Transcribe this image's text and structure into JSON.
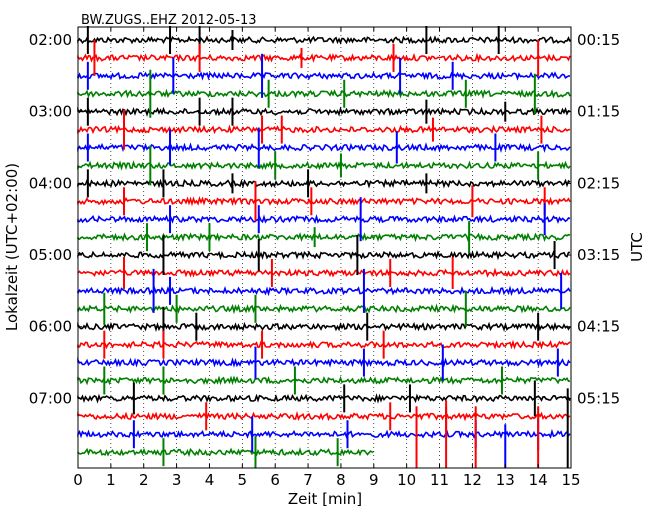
{
  "chart_data": {
    "type": "line",
    "title": "BW.ZUGS..EHZ 2012-05-13",
    "xlabel": "Zeit  [min]",
    "ylabel_left": "Lokalzeit (UTC+02:00)",
    "ylabel_right": "UTC",
    "xlim": [
      0,
      15
    ],
    "x_ticks": [
      "0",
      "1",
      "2",
      "3",
      "4",
      "5",
      "6",
      "7",
      "8",
      "9",
      "10",
      "11",
      "12",
      "13",
      "14",
      "15"
    ],
    "y_ticks_left": [
      "02:00",
      "03:00",
      "04:00",
      "05:00",
      "06:00",
      "07:00"
    ],
    "y_ticks_right": [
      "00:15",
      "01:15",
      "02:15",
      "03:15",
      "04:15",
      "05:15"
    ],
    "grid": "vertical dotted",
    "trace_colors": [
      "#000000",
      "#ff0000",
      "#0000ff",
      "#008000"
    ],
    "trace_count": 24,
    "last_trace_end_min": 9.0,
    "spikes": [
      {
        "row": 0,
        "x": 0.3,
        "amp": 14
      },
      {
        "row": 0,
        "x": 2.8,
        "amp": 14
      },
      {
        "row": 0,
        "x": 3.7,
        "amp": 14
      },
      {
        "row": 0,
        "x": 4.7,
        "amp": 10
      },
      {
        "row": 0,
        "x": 10.6,
        "amp": 14
      },
      {
        "row": 0,
        "x": 12.8,
        "amp": 14
      },
      {
        "row": 1,
        "x": 0.5,
        "amp": 18
      },
      {
        "row": 1,
        "x": 3.7,
        "amp": 14
      },
      {
        "row": 1,
        "x": 6.8,
        "amp": 10
      },
      {
        "row": 1,
        "x": 9.6,
        "amp": 14
      },
      {
        "row": 1,
        "x": 14.0,
        "amp": 18
      },
      {
        "row": 2,
        "x": 0.3,
        "amp": 14
      },
      {
        "row": 2,
        "x": 2.9,
        "amp": 18
      },
      {
        "row": 2,
        "x": 5.6,
        "amp": 22
      },
      {
        "row": 2,
        "x": 9.8,
        "amp": 18
      },
      {
        "row": 2,
        "x": 11.4,
        "amp": 14
      },
      {
        "row": 3,
        "x": 2.2,
        "amp": 24
      },
      {
        "row": 3,
        "x": 5.8,
        "amp": 14
      },
      {
        "row": 3,
        "x": 8.1,
        "amp": 14
      },
      {
        "row": 3,
        "x": 11.8,
        "amp": 14
      },
      {
        "row": 3,
        "x": 13.9,
        "amp": 20
      },
      {
        "row": 4,
        "x": 0.3,
        "amp": 14
      },
      {
        "row": 4,
        "x": 3.7,
        "amp": 14
      },
      {
        "row": 4,
        "x": 4.7,
        "amp": 14
      },
      {
        "row": 4,
        "x": 10.6,
        "amp": 12
      },
      {
        "row": 4,
        "x": 13.0,
        "amp": 10
      },
      {
        "row": 5,
        "x": 1.4,
        "amp": 20
      },
      {
        "row": 5,
        "x": 5.6,
        "amp": 14
      },
      {
        "row": 5,
        "x": 6.2,
        "amp": 14
      },
      {
        "row": 5,
        "x": 10.8,
        "amp": 12
      },
      {
        "row": 5,
        "x": 14.1,
        "amp": 14
      },
      {
        "row": 6,
        "x": 0.3,
        "amp": 14
      },
      {
        "row": 6,
        "x": 2.8,
        "amp": 18
      },
      {
        "row": 6,
        "x": 5.5,
        "amp": 20
      },
      {
        "row": 6,
        "x": 9.7,
        "amp": 16
      },
      {
        "row": 6,
        "x": 12.7,
        "amp": 14
      },
      {
        "row": 7,
        "x": 2.2,
        "amp": 20
      },
      {
        "row": 7,
        "x": 6.0,
        "amp": 14
      },
      {
        "row": 7,
        "x": 8.0,
        "amp": 12
      },
      {
        "row": 7,
        "x": 14.0,
        "amp": 14
      },
      {
        "row": 8,
        "x": 0.3,
        "amp": 14
      },
      {
        "row": 8,
        "x": 2.6,
        "amp": 14
      },
      {
        "row": 8,
        "x": 4.7,
        "amp": 10
      },
      {
        "row": 8,
        "x": 7.0,
        "amp": 14
      },
      {
        "row": 8,
        "x": 10.6,
        "amp": 10
      },
      {
        "row": 9,
        "x": 1.4,
        "amp": 14
      },
      {
        "row": 9,
        "x": 5.4,
        "amp": 20
      },
      {
        "row": 9,
        "x": 7.1,
        "amp": 14
      },
      {
        "row": 9,
        "x": 12.0,
        "amp": 16
      },
      {
        "row": 9,
        "x": 14.2,
        "amp": 14
      },
      {
        "row": 10,
        "x": 2.8,
        "amp": 14
      },
      {
        "row": 10,
        "x": 5.5,
        "amp": 14
      },
      {
        "row": 10,
        "x": 8.6,
        "amp": 22
      },
      {
        "row": 10,
        "x": 14.2,
        "amp": 16
      },
      {
        "row": 11,
        "x": 2.1,
        "amp": 14
      },
      {
        "row": 11,
        "x": 4.0,
        "amp": 14
      },
      {
        "row": 11,
        "x": 7.2,
        "amp": 10
      },
      {
        "row": 11,
        "x": 11.9,
        "amp": 16
      },
      {
        "row": 12,
        "x": 2.6,
        "amp": 20
      },
      {
        "row": 12,
        "x": 5.5,
        "amp": 16
      },
      {
        "row": 12,
        "x": 8.5,
        "amp": 20
      },
      {
        "row": 12,
        "x": 14.5,
        "amp": 14
      },
      {
        "row": 13,
        "x": 1.4,
        "amp": 16
      },
      {
        "row": 13,
        "x": 5.9,
        "amp": 14
      },
      {
        "row": 13,
        "x": 9.5,
        "amp": 14
      },
      {
        "row": 13,
        "x": 11.4,
        "amp": 16
      },
      {
        "row": 14,
        "x": 2.3,
        "amp": 22
      },
      {
        "row": 14,
        "x": 2.8,
        "amp": 14
      },
      {
        "row": 14,
        "x": 8.7,
        "amp": 22
      },
      {
        "row": 14,
        "x": 14.7,
        "amp": 18
      },
      {
        "row": 15,
        "x": 0.8,
        "amp": 16
      },
      {
        "row": 15,
        "x": 3.0,
        "amp": 14
      },
      {
        "row": 15,
        "x": 5.4,
        "amp": 14
      },
      {
        "row": 15,
        "x": 11.8,
        "amp": 18
      },
      {
        "row": 16,
        "x": 2.6,
        "amp": 20
      },
      {
        "row": 16,
        "x": 3.6,
        "amp": 14
      },
      {
        "row": 16,
        "x": 8.8,
        "amp": 14
      },
      {
        "row": 16,
        "x": 14.0,
        "amp": 14
      },
      {
        "row": 17,
        "x": 0.8,
        "amp": 14
      },
      {
        "row": 17,
        "x": 2.6,
        "amp": 14
      },
      {
        "row": 17,
        "x": 5.6,
        "amp": 14
      },
      {
        "row": 17,
        "x": 9.3,
        "amp": 14
      },
      {
        "row": 18,
        "x": 5.4,
        "amp": 16
      },
      {
        "row": 18,
        "x": 8.7,
        "amp": 14
      },
      {
        "row": 18,
        "x": 11.1,
        "amp": 18
      },
      {
        "row": 18,
        "x": 14.6,
        "amp": 14
      },
      {
        "row": 19,
        "x": 0.8,
        "amp": 14
      },
      {
        "row": 19,
        "x": 2.6,
        "amp": 14
      },
      {
        "row": 19,
        "x": 6.6,
        "amp": 14
      },
      {
        "row": 19,
        "x": 12.9,
        "amp": 14
      },
      {
        "row": 20,
        "x": 1.7,
        "amp": 16
      },
      {
        "row": 20,
        "x": 8.1,
        "amp": 14
      },
      {
        "row": 20,
        "x": 10.1,
        "amp": 14
      },
      {
        "row": 20,
        "x": 13.9,
        "amp": 18
      },
      {
        "row": 21,
        "x": 3.9,
        "amp": 14
      },
      {
        "row": 21,
        "x": 9.5,
        "amp": 14
      },
      {
        "row": 21,
        "x": 11.2,
        "amp": 16
      },
      {
        "row": 22,
        "x": 1.7,
        "amp": 14
      },
      {
        "row": 22,
        "x": 5.3,
        "amp": 18
      },
      {
        "row": 22,
        "x": 8.2,
        "amp": 14
      },
      {
        "row": 22,
        "x": 12.1,
        "amp": 14
      },
      {
        "row": 22,
        "x": 14.0,
        "amp": 16
      },
      {
        "row": 23,
        "x": 2.6,
        "amp": 14
      },
      {
        "row": 23,
        "x": 5.4,
        "amp": 16
      },
      {
        "row": 23,
        "x": 7.9,
        "amp": 14
      }
    ],
    "tall_bursts": [
      {
        "x": 10.3,
        "rows": [
          21,
          24
        ]
      },
      {
        "x": 11.2,
        "rows": [
          21,
          24
        ]
      },
      {
        "x": 12.1,
        "rows": [
          21,
          24
        ]
      },
      {
        "x": 13.0,
        "rows": [
          22,
          24
        ]
      },
      {
        "x": 14.0,
        "rows": [
          21,
          24
        ]
      },
      {
        "x": 14.9,
        "rows": [
          20,
          24
        ]
      }
    ]
  }
}
